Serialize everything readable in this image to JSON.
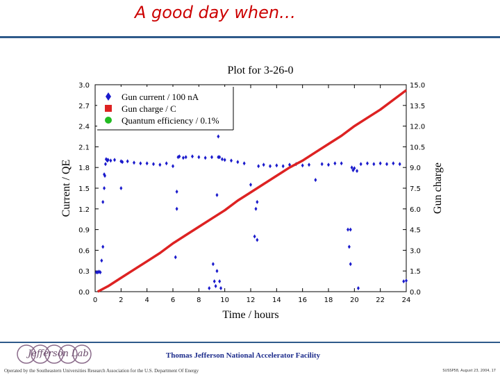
{
  "slide": {
    "title": "A good day when…",
    "facility": "Thomas Jefferson National Accelerator Facility",
    "operated_by": "Operated by the Southeastern Universities Research Association for the U.S. Department Of Energy",
    "reference": "SUSSP58, August 23, 2004, 17",
    "logo_text": "Jefferson Lab"
  },
  "colors": {
    "accent": "#cc0000",
    "rule": "#2e5a8a",
    "current": "#1a1acc",
    "charge": "#dd2222",
    "qe": "#22bb22"
  },
  "chart_data": {
    "type": "scatter",
    "title": "Plot for 3-26-0",
    "xlabel": "Time / hours",
    "ylabel_left": "Current / QE",
    "ylabel_right": "Gun charge",
    "xlim": [
      0,
      24
    ],
    "ylim_left": [
      0,
      3.0
    ],
    "ylim_right": [
      0,
      15.0
    ],
    "x_ticks": [
      "0",
      "2",
      "4",
      "6",
      "8",
      "10",
      "12",
      "14",
      "16",
      "18",
      "20",
      "22",
      "24"
    ],
    "y_ticks_left": [
      "0.0",
      "0.3",
      "0.6",
      "0.9",
      "1.2",
      "1.5",
      "1.8",
      "2.1",
      "2.4",
      "2.7",
      "3.0"
    ],
    "y_ticks_right": [
      "0.0",
      "1.5",
      "3.0",
      "4.5",
      "6.0",
      "7.5",
      "9.0",
      "10.5",
      "12.0",
      "13.5",
      "15.0"
    ],
    "legend_position": "top-left",
    "series": [
      {
        "name": "Gun current / 100 nA",
        "marker": "diamond",
        "color": "#1a1acc",
        "axis": "left",
        "x": [
          0.1,
          0.2,
          0.3,
          0.4,
          0.5,
          0.6,
          0.6,
          0.7,
          0.7,
          0.75,
          0.8,
          0.85,
          0.9,
          0.95,
          1.0,
          1.2,
          1.5,
          2.0,
          2.0,
          2.1,
          2.5,
          3.0,
          3.5,
          4.0,
          4.5,
          5.0,
          5.5,
          6.0,
          6.2,
          6.3,
          6.3,
          6.4,
          6.5,
          6.8,
          7.0,
          7.5,
          8.0,
          8.5,
          8.8,
          9.0,
          9.1,
          9.2,
          9.3,
          9.4,
          9.4,
          9.5,
          9.5,
          9.6,
          9.6,
          9.7,
          9.8,
          10.0,
          10.5,
          11.0,
          11.5,
          12.0,
          12.3,
          12.4,
          12.5,
          12.5,
          12.6,
          13.0,
          13.5,
          14.0,
          14.5,
          15.0,
          15.5,
          16.0,
          16.5,
          17.0,
          17.5,
          18.0,
          18.5,
          19.0,
          19.5,
          19.6,
          19.7,
          19.7,
          19.8,
          19.9,
          20.0,
          20.2,
          20.3,
          20.5,
          21.0,
          21.5,
          22.0,
          22.5,
          23.0,
          23.5,
          23.8,
          24.0
        ],
        "y": [
          0.28,
          0.28,
          0.29,
          0.28,
          0.45,
          0.65,
          1.3,
          1.5,
          1.7,
          1.68,
          1.85,
          1.92,
          1.91,
          1.9,
          1.91,
          1.9,
          1.91,
          1.89,
          1.5,
          1.88,
          1.89,
          1.87,
          1.86,
          1.86,
          1.85,
          1.84,
          1.86,
          1.82,
          0.5,
          1.45,
          1.2,
          1.95,
          1.96,
          1.94,
          1.95,
          1.96,
          1.95,
          1.94,
          0.05,
          1.95,
          0.4,
          0.15,
          0.08,
          0.3,
          1.4,
          1.95,
          2.25,
          1.95,
          0.15,
          0.05,
          1.92,
          1.91,
          1.9,
          1.88,
          1.86,
          1.55,
          0.8,
          1.2,
          1.3,
          0.75,
          1.82,
          1.84,
          1.82,
          1.83,
          1.82,
          1.84,
          1.85,
          1.83,
          1.84,
          1.62,
          1.85,
          1.84,
          1.86,
          1.86,
          0.9,
          0.65,
          0.4,
          0.9,
          1.8,
          1.76,
          1.79,
          1.75,
          0.05,
          1.85,
          1.86,
          1.85,
          1.86,
          1.85,
          1.86,
          1.85,
          0.15,
          0.16
        ]
      },
      {
        "name": "Gun charge / C",
        "marker": "square",
        "color": "#dd2222",
        "axis": "right",
        "x": [
          0.2,
          1,
          2,
          3,
          4,
          5,
          6,
          7,
          8,
          9,
          10,
          11,
          12,
          13,
          14,
          15,
          16,
          17,
          18,
          19,
          20,
          21,
          22,
          23,
          24
        ],
        "y": [
          0.0,
          0.4,
          1.0,
          1.6,
          2.2,
          2.8,
          3.5,
          4.1,
          4.7,
          5.3,
          5.9,
          6.6,
          7.2,
          7.8,
          8.4,
          9.0,
          9.5,
          10.1,
          10.7,
          11.3,
          12.0,
          12.6,
          13.2,
          13.9,
          14.6
        ]
      },
      {
        "name": "Quantum efficiency / 0.1%",
        "marker": "circle",
        "color": "#22bb22",
        "axis": "left",
        "x": [],
        "y": []
      }
    ]
  }
}
